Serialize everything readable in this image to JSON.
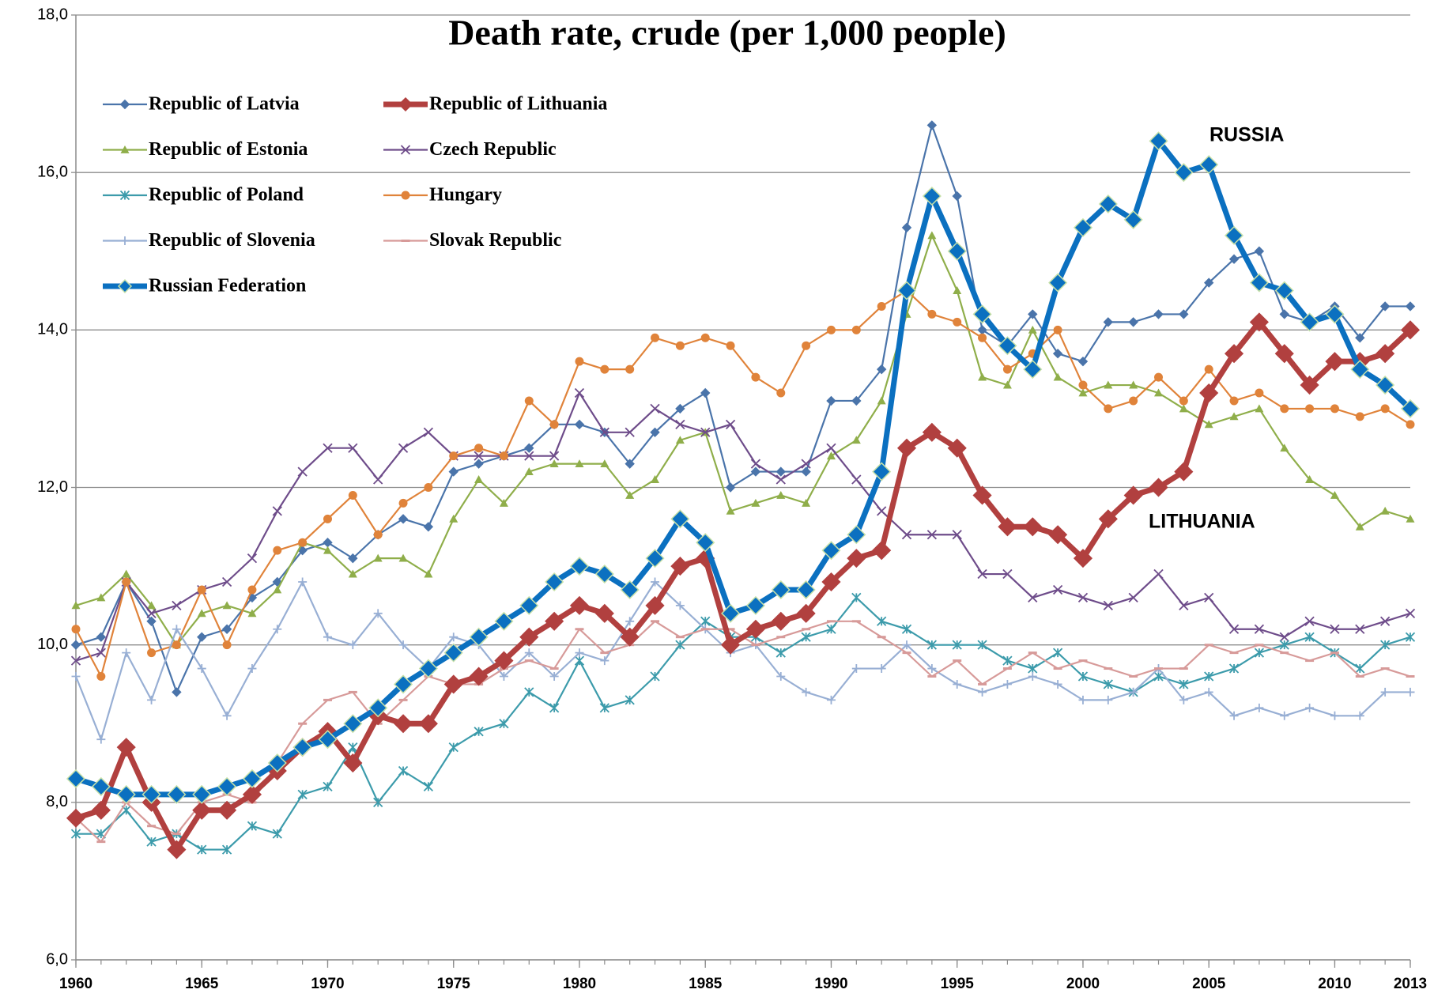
{
  "chart_data": {
    "type": "line",
    "title": "Death rate, crude (per 1,000 people)",
    "x": [
      1960,
      1961,
      1962,
      1963,
      1964,
      1965,
      1966,
      1967,
      1968,
      1969,
      1970,
      1971,
      1972,
      1973,
      1974,
      1975,
      1976,
      1977,
      1978,
      1979,
      1980,
      1981,
      1982,
      1983,
      1984,
      1985,
      1986,
      1987,
      1988,
      1989,
      1990,
      1991,
      1992,
      1993,
      1994,
      1995,
      1996,
      1997,
      1998,
      1999,
      2000,
      2001,
      2002,
      2003,
      2004,
      2005,
      2006,
      2007,
      2008,
      2009,
      2010,
      2011,
      2012,
      2013
    ],
    "xlim": [
      1960,
      2013
    ],
    "xticks": [
      1960,
      1965,
      1970,
      1975,
      1980,
      1985,
      1990,
      1995,
      2000,
      2005,
      2010,
      2013
    ],
    "ylim": [
      6,
      18
    ],
    "yticks": [
      {
        "value": 6,
        "label": "6,0"
      },
      {
        "value": 8,
        "label": "8,0"
      },
      {
        "value": 10,
        "label": "10,0"
      },
      {
        "value": 12,
        "label": "12,0"
      },
      {
        "value": 14,
        "label": "14,0"
      },
      {
        "value": 16,
        "label": "16,0"
      },
      {
        "value": 18,
        "label": "18,0"
      }
    ],
    "grid": true,
    "annotations": [
      "RUSSIA",
      "LITHUANIA"
    ],
    "series": [
      {
        "name": "Republic of Latvia",
        "color": "#4a74aa",
        "marker": "diamond",
        "emphasis": false,
        "values": [
          10.0,
          10.1,
          10.8,
          10.3,
          9.4,
          10.1,
          10.2,
          10.6,
          10.8,
          11.2,
          11.3,
          11.1,
          11.4,
          11.6,
          11.5,
          12.2,
          12.3,
          12.4,
          12.5,
          12.8,
          12.8,
          12.7,
          12.3,
          12.7,
          13.0,
          13.2,
          12.0,
          12.2,
          12.2,
          12.2,
          13.1,
          13.1,
          13.5,
          15.3,
          16.6,
          15.7,
          14.0,
          13.8,
          14.2,
          13.7,
          13.6,
          14.1,
          14.1,
          14.2,
          14.2,
          14.6,
          14.9,
          15.0,
          14.2,
          14.1,
          14.3,
          13.9,
          14.3,
          14.3
        ]
      },
      {
        "name": "Republic of Lithuania",
        "color": "#b1403f",
        "marker": "diamond",
        "emphasis": true,
        "values": [
          7.8,
          7.9,
          8.7,
          8.0,
          7.4,
          7.9,
          7.9,
          8.1,
          8.4,
          8.7,
          8.9,
          8.5,
          9.1,
          9.0,
          9.0,
          9.5,
          9.6,
          9.8,
          10.1,
          10.3,
          10.5,
          10.4,
          10.1,
          10.5,
          11.0,
          11.1,
          10.0,
          10.2,
          10.3,
          10.4,
          10.8,
          11.1,
          11.2,
          12.5,
          12.7,
          12.5,
          11.9,
          11.5,
          11.5,
          11.4,
          11.1,
          11.6,
          11.9,
          12.0,
          12.2,
          13.2,
          13.7,
          14.1,
          13.7,
          13.3,
          13.6,
          13.6,
          13.7,
          14.0
        ]
      },
      {
        "name": "Republic of Estonia",
        "color": "#8fae4a",
        "marker": "triangle",
        "emphasis": false,
        "values": [
          10.5,
          10.6,
          10.9,
          10.5,
          10.0,
          10.4,
          10.5,
          10.4,
          10.7,
          11.3,
          11.2,
          10.9,
          11.1,
          11.1,
          10.9,
          11.6,
          12.1,
          11.8,
          12.2,
          12.3,
          12.3,
          12.3,
          11.9,
          12.1,
          12.6,
          12.7,
          11.7,
          11.8,
          11.9,
          11.8,
          12.4,
          12.6,
          13.1,
          14.2,
          15.2,
          14.5,
          13.4,
          13.3,
          14.0,
          13.4,
          13.2,
          13.3,
          13.3,
          13.2,
          13.0,
          12.8,
          12.9,
          13.0,
          12.5,
          12.1,
          11.9,
          11.5,
          11.7,
          11.6
        ]
      },
      {
        "name": "Czech Republic",
        "color": "#6e4c8a",
        "marker": "cross",
        "emphasis": false,
        "values": [
          9.8,
          9.9,
          10.8,
          10.4,
          10.5,
          10.7,
          10.8,
          11.1,
          11.7,
          12.2,
          12.5,
          12.5,
          12.1,
          12.5,
          12.7,
          12.4,
          12.4,
          12.4,
          12.4,
          12.4,
          13.2,
          12.7,
          12.7,
          13.0,
          12.8,
          12.7,
          12.8,
          12.3,
          12.1,
          12.3,
          12.5,
          12.1,
          11.7,
          11.4,
          11.4,
          11.4,
          10.9,
          10.9,
          10.6,
          10.7,
          10.6,
          10.5,
          10.6,
          10.9,
          10.5,
          10.6,
          10.2,
          10.2,
          10.1,
          10.3,
          10.2,
          10.2,
          10.3,
          10.4
        ]
      },
      {
        "name": "Republic of Poland",
        "color": "#3c9bab",
        "marker": "star",
        "emphasis": false,
        "values": [
          7.6,
          7.6,
          7.9,
          7.5,
          7.6,
          7.4,
          7.4,
          7.7,
          7.6,
          8.1,
          8.2,
          8.7,
          8.0,
          8.4,
          8.2,
          8.7,
          8.9,
          9.0,
          9.4,
          9.2,
          9.8,
          9.2,
          9.3,
          9.6,
          10.0,
          10.3,
          10.1,
          10.1,
          9.9,
          10.1,
          10.2,
          10.6,
          10.3,
          10.2,
          10.0,
          10.0,
          10.0,
          9.8,
          9.7,
          9.9,
          9.6,
          9.5,
          9.4,
          9.6,
          9.5,
          9.6,
          9.7,
          9.9,
          10.0,
          10.1,
          9.9,
          9.7,
          10.0,
          10.1
        ]
      },
      {
        "name": "Hungary",
        "color": "#e0833a",
        "marker": "circle",
        "emphasis": false,
        "values": [
          10.2,
          9.6,
          10.8,
          9.9,
          10.0,
          10.7,
          10.0,
          10.7,
          11.2,
          11.3,
          11.6,
          11.9,
          11.4,
          11.8,
          12.0,
          12.4,
          12.5,
          12.4,
          13.1,
          12.8,
          13.6,
          13.5,
          13.5,
          13.9,
          13.8,
          13.9,
          13.8,
          13.4,
          13.2,
          13.8,
          14.0,
          14.0,
          14.3,
          14.5,
          14.2,
          14.1,
          13.9,
          13.5,
          13.7,
          14.0,
          13.3,
          13.0,
          13.1,
          13.4,
          13.1,
          13.5,
          13.1,
          13.2,
          13.0,
          13.0,
          13.0,
          12.9,
          13.0,
          12.8
        ]
      },
      {
        "name": "Republic of Slovenia",
        "color": "#98afd4",
        "marker": "plus",
        "emphasis": false,
        "values": [
          9.6,
          8.8,
          9.9,
          9.3,
          10.2,
          9.7,
          9.1,
          9.7,
          10.2,
          10.8,
          10.1,
          10.0,
          10.4,
          10.0,
          9.7,
          10.1,
          10.0,
          9.6,
          9.9,
          9.6,
          9.9,
          9.8,
          10.3,
          10.8,
          10.5,
          10.2,
          9.9,
          10.0,
          9.6,
          9.4,
          9.3,
          9.7,
          9.7,
          10.0,
          9.7,
          9.5,
          9.4,
          9.5,
          9.6,
          9.5,
          9.3,
          9.3,
          9.4,
          9.7,
          9.3,
          9.4,
          9.1,
          9.2,
          9.1,
          9.2,
          9.1,
          9.1,
          9.4,
          9.4
        ]
      },
      {
        "name": "Slovak Republic",
        "color": "#d79a99",
        "marker": "dash",
        "emphasis": false,
        "values": [
          7.8,
          7.5,
          8.0,
          7.7,
          7.6,
          8.0,
          8.1,
          8.0,
          8.5,
          9.0,
          9.3,
          9.4,
          9.0,
          9.3,
          9.6,
          9.5,
          9.5,
          9.7,
          9.8,
          9.7,
          10.2,
          9.9,
          10.0,
          10.3,
          10.1,
          10.2,
          10.2,
          10.0,
          10.1,
          10.2,
          10.3,
          10.3,
          10.1,
          9.9,
          9.6,
          9.8,
          9.5,
          9.7,
          9.9,
          9.7,
          9.8,
          9.7,
          9.6,
          9.7,
          9.7,
          10.0,
          9.9,
          10.0,
          9.9,
          9.8,
          9.9,
          9.6,
          9.7,
          9.6
        ]
      },
      {
        "name": "Russian Federation",
        "color": "#0b70c0",
        "marker": "diamond",
        "emphasis": true,
        "values": [
          8.3,
          8.2,
          8.1,
          8.1,
          8.1,
          8.1,
          8.2,
          8.3,
          8.5,
          8.7,
          8.8,
          9.0,
          9.2,
          9.5,
          9.7,
          9.9,
          10.1,
          10.3,
          10.5,
          10.8,
          11.0,
          10.9,
          10.7,
          11.1,
          11.6,
          11.3,
          10.4,
          10.5,
          10.7,
          10.7,
          11.2,
          11.4,
          12.2,
          14.5,
          15.7,
          15.0,
          14.2,
          13.8,
          13.5,
          14.6,
          15.3,
          15.6,
          15.4,
          16.4,
          16.0,
          16.1,
          15.2,
          14.6,
          14.5,
          14.1,
          14.2,
          13.5,
          13.3,
          13.0
        ]
      }
    ]
  }
}
